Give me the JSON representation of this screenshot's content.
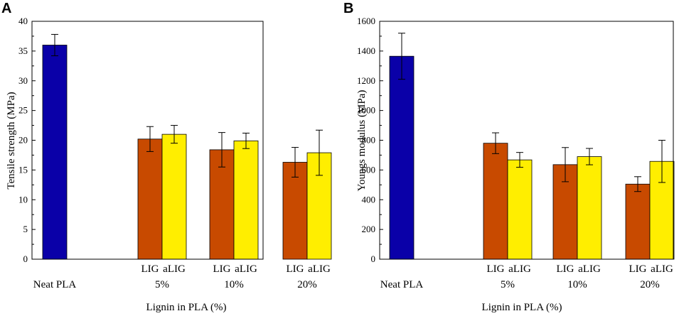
{
  "chart_data": [
    {
      "type": "bar",
      "panel": "A",
      "ylabel": "Tensile strength (MPa)",
      "xlabel": "Lignin in PLA (%)",
      "ylim": [
        0,
        40
      ],
      "yticks": [
        0,
        5,
        10,
        15,
        20,
        25,
        30,
        35,
        40
      ],
      "groups": [
        {
          "label": "Neat PLA",
          "bars": [
            {
              "sublabel": "",
              "value": 36.0,
              "error": 1.8,
              "color": "#0a00a8"
            }
          ]
        },
        {
          "label": "5%",
          "bars": [
            {
              "sublabel": "LIG",
              "value": 20.2,
              "error": 2.1,
              "color": "#c84a00"
            },
            {
              "sublabel": "aLIG",
              "value": 21.0,
              "error": 1.5,
              "color": "#ffee00"
            }
          ]
        },
        {
          "label": "10%",
          "bars": [
            {
              "sublabel": "LIG",
              "value": 18.4,
              "error": 2.9,
              "color": "#c84a00"
            },
            {
              "sublabel": "aLIG",
              "value": 19.9,
              "error": 1.3,
              "color": "#ffee00"
            }
          ]
        },
        {
          "label": "20%",
          "bars": [
            {
              "sublabel": "LIG",
              "value": 16.3,
              "error": 2.5,
              "color": "#c84a00"
            },
            {
              "sublabel": "aLIG",
              "value": 17.9,
              "error": 3.8,
              "color": "#ffee00"
            }
          ]
        }
      ]
    },
    {
      "type": "bar",
      "panel": "B",
      "ylabel": "Youngs modulus (MPa)",
      "xlabel": "Lignin in PLA (%)",
      "ylim": [
        0,
        1600
      ],
      "yticks": [
        0,
        200,
        400,
        600,
        800,
        1000,
        1200,
        1400,
        1600
      ],
      "groups": [
        {
          "label": "Neat PLA",
          "bars": [
            {
              "sublabel": "",
              "value": 1365,
              "error": 155,
              "color": "#0a00a8"
            }
          ]
        },
        {
          "label": "5%",
          "bars": [
            {
              "sublabel": "LIG",
              "value": 780,
              "error": 70,
              "color": "#c84a00"
            },
            {
              "sublabel": "aLIG",
              "value": 668,
              "error": 50,
              "color": "#ffee00"
            }
          ]
        },
        {
          "label": "10%",
          "bars": [
            {
              "sublabel": "LIG",
              "value": 636,
              "error": 115,
              "color": "#c84a00"
            },
            {
              "sublabel": "aLIG",
              "value": 690,
              "error": 55,
              "color": "#ffee00"
            }
          ]
        },
        {
          "label": "20%",
          "bars": [
            {
              "sublabel": "LIG",
              "value": 505,
              "error": 50,
              "color": "#c84a00"
            },
            {
              "sublabel": "aLIG",
              "value": 658,
              "error": 142,
              "color": "#ffee00"
            }
          ]
        }
      ]
    }
  ]
}
